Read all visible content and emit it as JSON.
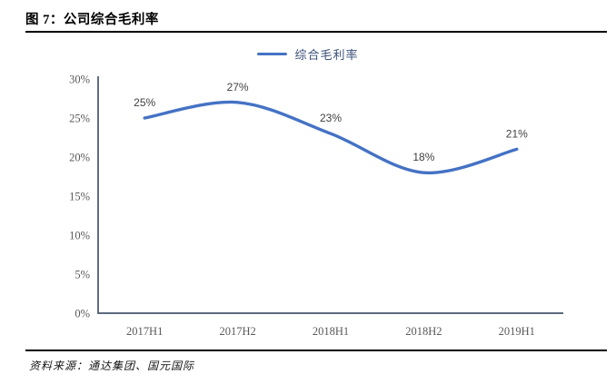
{
  "header": {
    "title": "图 7：公司综合毛利率"
  },
  "footer": {
    "source": "资料来源：通达集团、国元国际"
  },
  "chart_data": {
    "type": "line",
    "title": "图 7：公司综合毛利率",
    "legend": [
      "综合毛利率"
    ],
    "legend_position": "top-center",
    "categories": [
      "2017H1",
      "2017H2",
      "2018H1",
      "2018H2",
      "2019H1"
    ],
    "series": [
      {
        "name": "综合毛利率",
        "values": [
          25,
          27,
          23,
          18,
          21
        ],
        "labels": [
          "25%",
          "27%",
          "23%",
          "18%",
          "21%"
        ],
        "color": "#4472C4"
      }
    ],
    "xlabel": "",
    "ylabel": "",
    "ylim": [
      0,
      30
    ],
    "ytick_step": 5,
    "ytick_format": "percent",
    "grid": false,
    "smooth": true
  },
  "colors": {
    "accent": "#4472C4",
    "axis": "#44546A",
    "tick_label": "#595959",
    "data_label": "#404040",
    "legend_text": "#3A4F7A",
    "rule": "#000000"
  }
}
